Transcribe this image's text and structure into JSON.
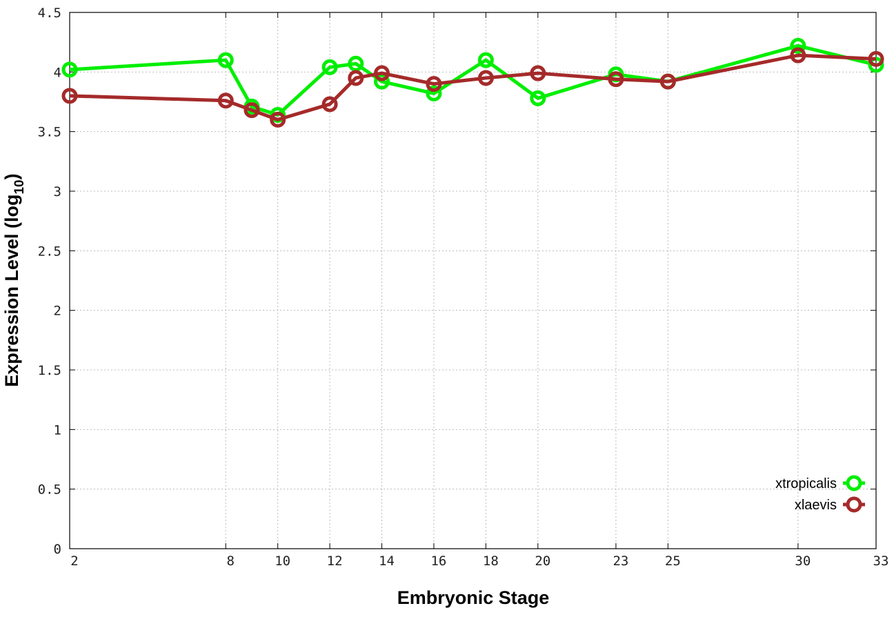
{
  "chart_data": {
    "type": "line",
    "title": "",
    "xlabel": "Embryonic Stage",
    "ylabel": "Expression Level (log",
    "ylabel_subscript": "10",
    "ylabel_close": ")",
    "xlim": [
      2,
      33
    ],
    "ylim": [
      0,
      4.5
    ],
    "x_ticks": [
      2,
      8,
      10,
      12,
      14,
      16,
      18,
      20,
      23,
      25,
      30,
      33
    ],
    "y_ticks": [
      "0",
      "0.5",
      "1",
      "1.5",
      "2",
      "2.5",
      "3",
      "3.5",
      "4",
      "4.5"
    ],
    "grid": true,
    "legend_position": "bottom-right",
    "x": [
      2,
      8,
      9,
      10,
      12,
      13,
      14,
      16,
      18,
      20,
      23,
      25,
      30,
      33
    ],
    "series": [
      {
        "name": "xtropicalis",
        "color": "#00ee00",
        "values": [
          4.02,
          4.1,
          3.71,
          3.64,
          4.04,
          4.07,
          3.92,
          3.82,
          4.1,
          3.78,
          3.98,
          3.92,
          4.22,
          4.06
        ]
      },
      {
        "name": "xlaevis",
        "color": "#a52a2a",
        "values": [
          3.8,
          3.76,
          3.68,
          3.6,
          3.73,
          3.95,
          3.99,
          3.9,
          3.95,
          3.99,
          3.94,
          3.92,
          4.14,
          4.11
        ]
      }
    ]
  }
}
